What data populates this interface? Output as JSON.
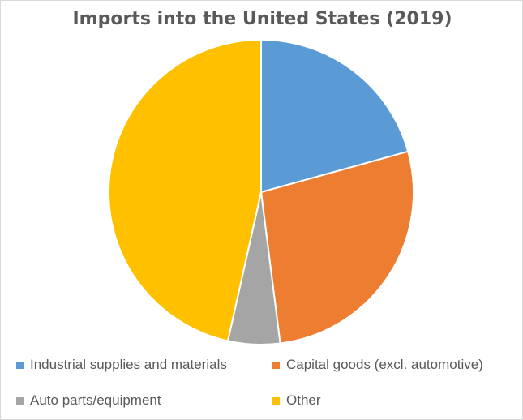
{
  "chart_data": {
    "type": "pie",
    "title": "Imports into the United States (2019)",
    "categories": [
      "Industrial supplies and materials",
      "Capital goods (excl. automotive)",
      "Auto parts/equipment",
      "Other"
    ],
    "values": [
      20.7,
      27.3,
      5.5,
      46.5
    ],
    "colors": [
      "#5b9bd5",
      "#ed7d31",
      "#a5a5a5",
      "#ffc000"
    ],
    "legend_position": "bottom",
    "start_angle": "12 o'clock, clockwise"
  }
}
